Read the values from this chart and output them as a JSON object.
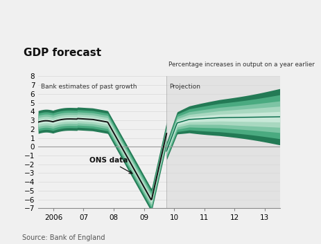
{
  "title": "GDP forecast",
  "subtitle": "Percentage increases in output on a year earlier",
  "label_past": "Bank estimates of past growth",
  "label_proj": "Projection",
  "label_ons": "ONS data",
  "source": "Source: Bank of England",
  "ylim": [
    -7,
    8
  ],
  "yticks": [
    -7,
    -6,
    -5,
    -4,
    -3,
    -2,
    -1,
    0,
    1,
    2,
    3,
    4,
    5,
    6,
    7,
    8
  ],
  "xlim_left": 2005.5,
  "xlim_right": 2013.5,
  "projection_start": 2009.75,
  "projection_end": 2013.5,
  "xtick_positions": [
    2006,
    2007,
    2008,
    2009,
    2010,
    2011,
    2012,
    2013
  ],
  "xtick_labels": [
    "2006",
    "07",
    "08",
    "09",
    "10",
    "11",
    "12",
    "13"
  ],
  "bg_color": "#f0f0f0",
  "plot_bg_color": "#f0f0f0",
  "proj_bg_color": "#e2e2e2",
  "fan_colors_outer_to_inner": [
    "#c8e8d8",
    "#a8d8c0",
    "#7dc4a4",
    "#4aaa80",
    "#237a55",
    "#006644"
  ],
  "ons_line_color": "#111111",
  "zero_line_color": "#999999",
  "grid_color": "#d8d8d8",
  "annotation_color": "#111111",
  "text_color": "#333333",
  "title_color": "#111111",
  "source_color": "#555555"
}
